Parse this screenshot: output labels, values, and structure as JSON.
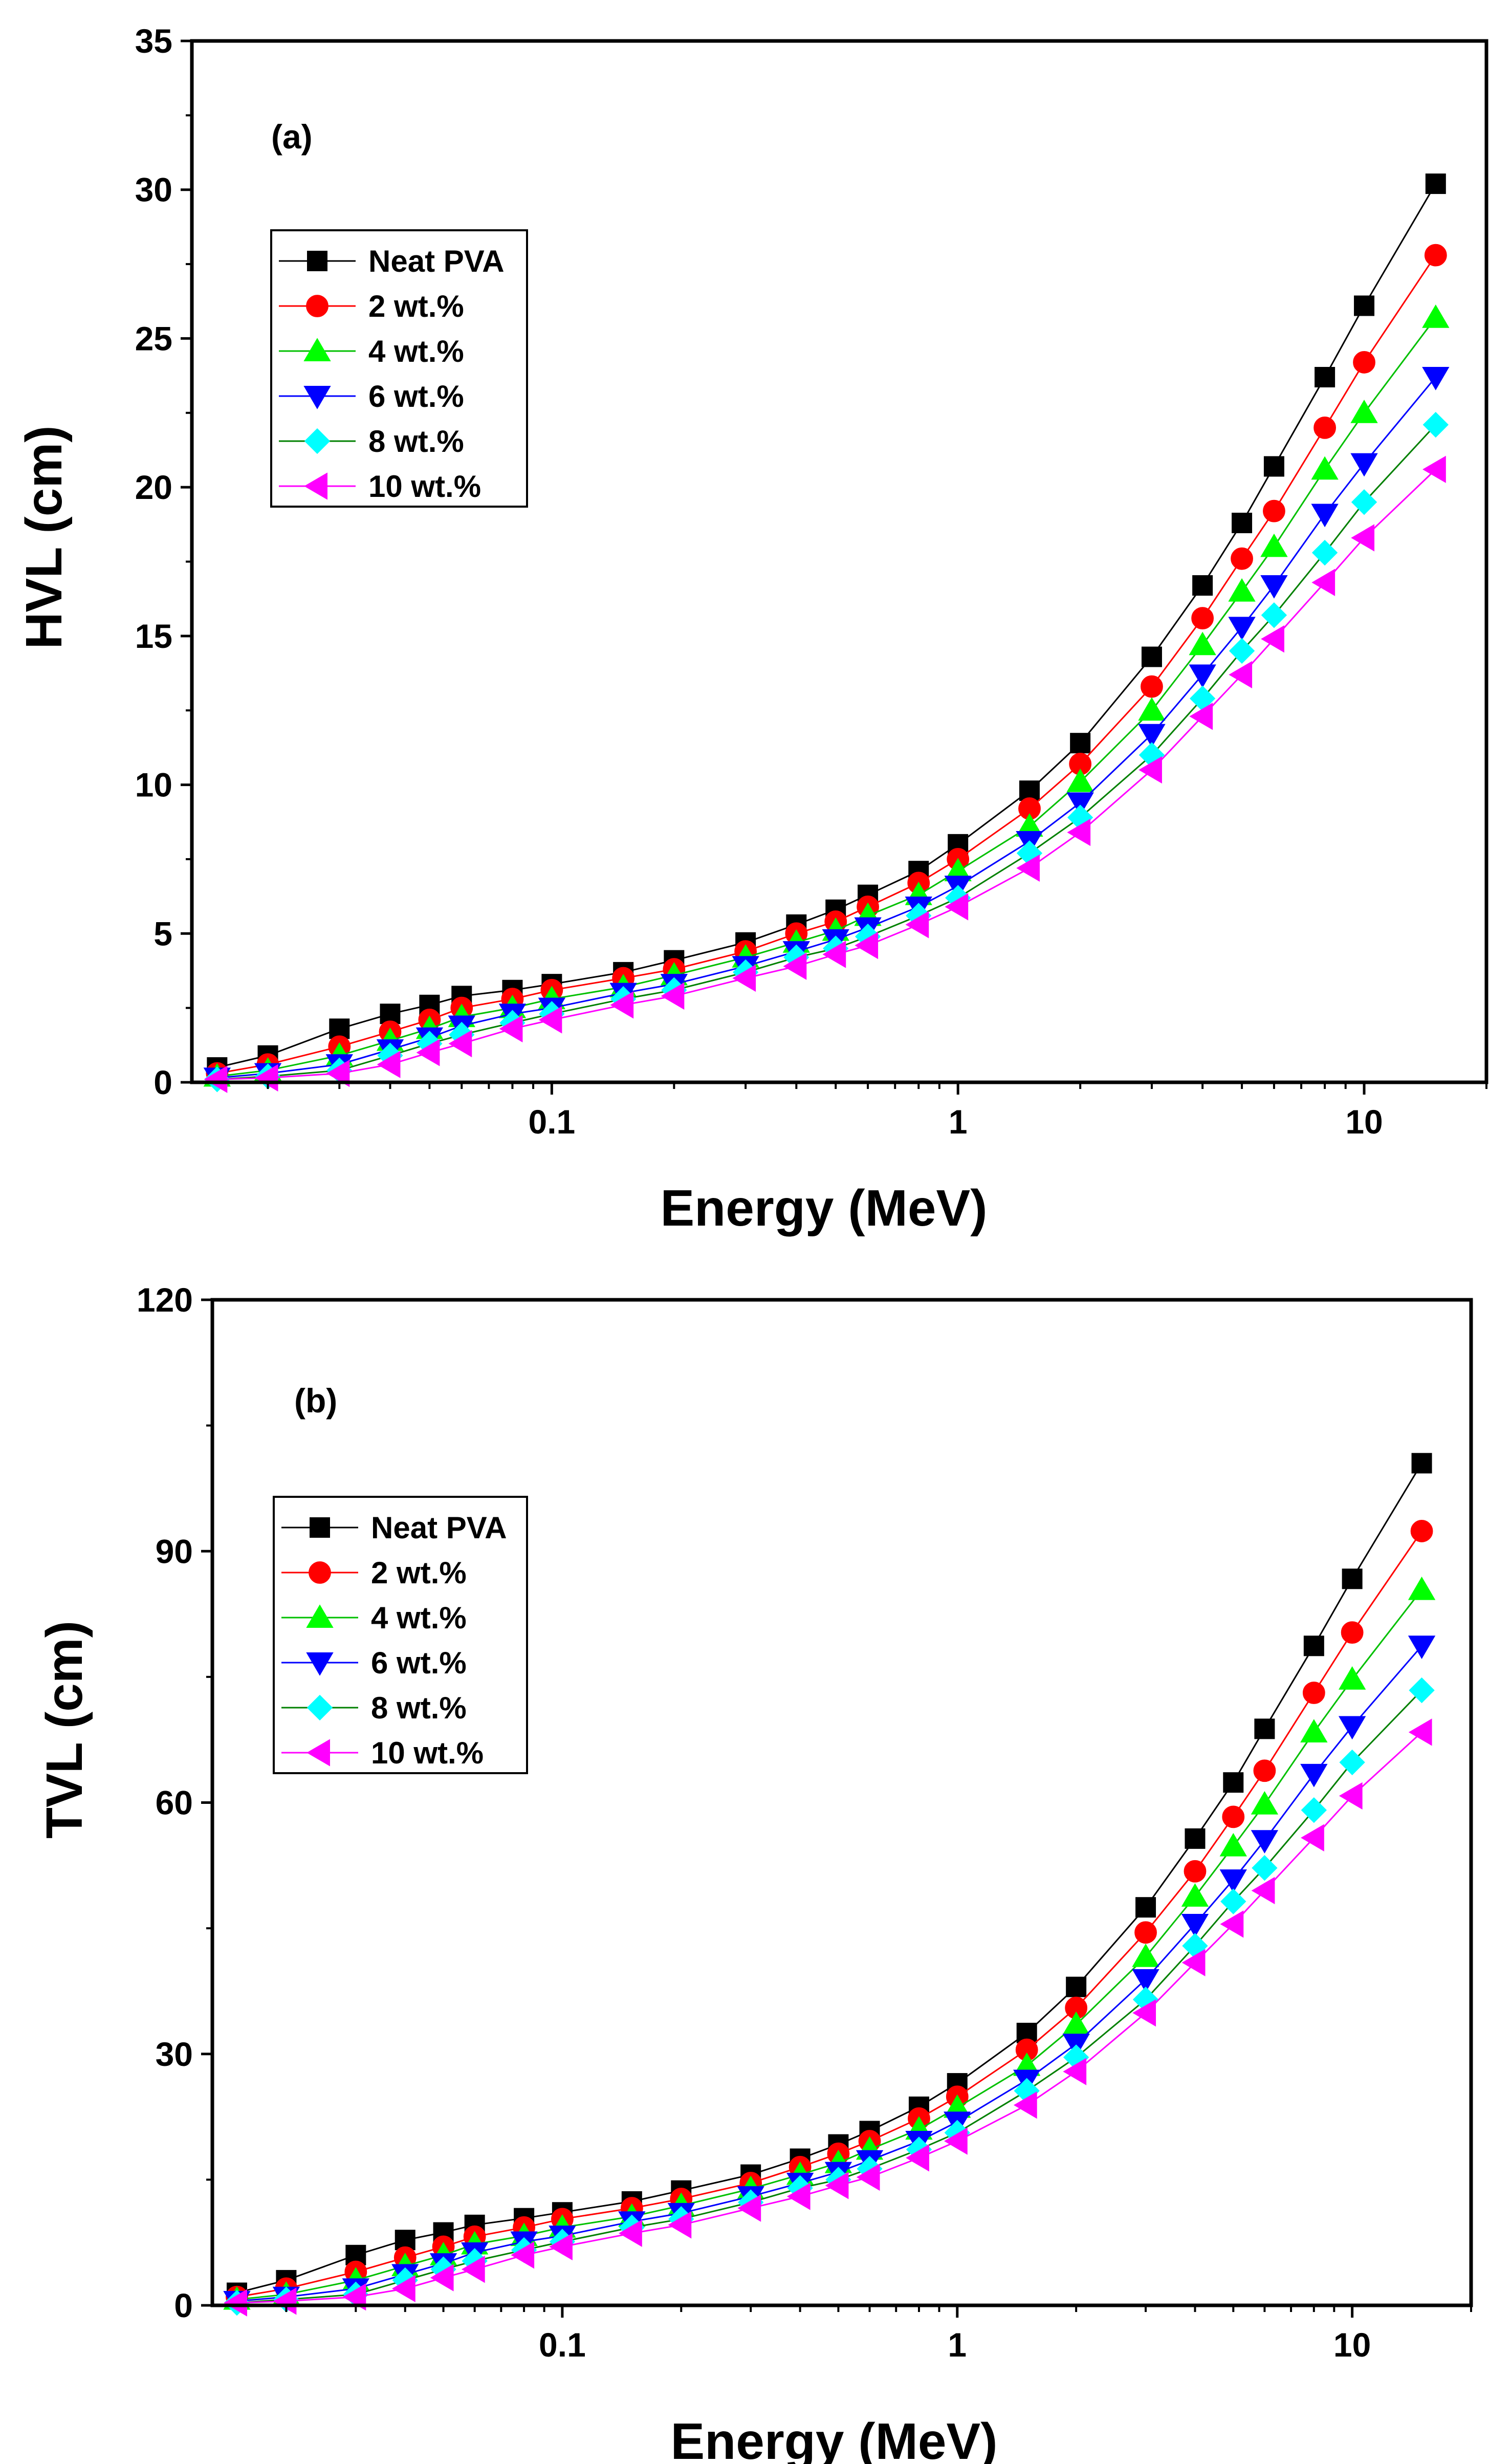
{
  "chart_data": [
    {
      "type": "line",
      "panel_label": "(a)",
      "xlabel": "Energy (MeV)",
      "ylabel": "HVL (cm)",
      "xscale": "log",
      "xlim": [
        0.013,
        20
      ],
      "ylim": [
        0,
        35
      ],
      "xticks": [
        {
          "value": 0.1,
          "label": "0.1"
        },
        {
          "value": 1,
          "label": "1"
        },
        {
          "value": 10,
          "label": "10"
        }
      ],
      "yticks": [
        0,
        5,
        10,
        15,
        20,
        25,
        30,
        35
      ],
      "legend_position": "top-left",
      "x": [
        0.015,
        0.02,
        0.03,
        0.04,
        0.05,
        0.06,
        0.08,
        0.1,
        0.15,
        0.2,
        0.3,
        0.4,
        0.5,
        0.6,
        0.8,
        1,
        1.5,
        2,
        3,
        4,
        5,
        6,
        8,
        10,
        15
      ],
      "series": [
        {
          "name": "Neat PVA",
          "color": "#000000",
          "marker": "square",
          "values": [
            0.5,
            0.9,
            1.8,
            2.3,
            2.6,
            2.9,
            3.1,
            3.3,
            3.7,
            4.1,
            4.7,
            5.3,
            5.8,
            6.3,
            7.1,
            8.0,
            9.8,
            11.4,
            14.3,
            16.7,
            18.8,
            20.7,
            23.7,
            26.1,
            30.2
          ]
        },
        {
          "name": "2 wt.%",
          "color": "#ff0000",
          "marker": "circle",
          "values": [
            0.3,
            0.6,
            1.2,
            1.7,
            2.1,
            2.5,
            2.8,
            3.1,
            3.5,
            3.8,
            4.4,
            5.0,
            5.4,
            5.9,
            6.7,
            7.5,
            9.2,
            10.7,
            13.3,
            15.6,
            17.6,
            19.2,
            22.0,
            24.2,
            27.8
          ]
        },
        {
          "name": "4 wt.%",
          "color": "#00ff00",
          "marker": "triangle-up",
          "values": [
            0.2,
            0.4,
            0.9,
            1.4,
            1.8,
            2.2,
            2.5,
            2.8,
            3.2,
            3.6,
            4.2,
            4.7,
            5.1,
            5.6,
            6.3,
            7.1,
            8.6,
            10.1,
            12.5,
            14.7,
            16.5,
            18.0,
            20.6,
            22.5,
            25.7
          ]
        },
        {
          "name": "6 wt.%",
          "color": "#0000ff",
          "marker": "triangle-down",
          "values": [
            0.15,
            0.3,
            0.6,
            1.1,
            1.5,
            1.9,
            2.3,
            2.5,
            3.0,
            3.3,
            3.9,
            4.4,
            4.8,
            5.2,
            5.9,
            6.6,
            8.1,
            9.4,
            11.7,
            13.7,
            15.3,
            16.7,
            19.1,
            20.8,
            23.7
          ]
        },
        {
          "name": "8 wt.%",
          "color": "#00ffff",
          "marker": "diamond",
          "values": [
            0.1,
            0.2,
            0.4,
            0.9,
            1.3,
            1.6,
            2.0,
            2.3,
            2.8,
            3.1,
            3.7,
            4.2,
            4.5,
            4.9,
            5.6,
            6.2,
            7.7,
            8.9,
            11.0,
            12.9,
            14.5,
            15.7,
            17.8,
            19.5,
            22.1
          ]
        },
        {
          "name": "10 wt.%",
          "color": "#ff00ff",
          "marker": "triangle-left",
          "values": [
            0.1,
            0.15,
            0.3,
            0.6,
            1.0,
            1.3,
            1.8,
            2.1,
            2.6,
            2.9,
            3.5,
            3.9,
            4.3,
            4.6,
            5.3,
            5.9,
            7.2,
            8.4,
            10.5,
            12.3,
            13.7,
            14.9,
            16.8,
            18.3,
            20.6
          ]
        }
      ]
    },
    {
      "type": "line",
      "panel_label": "(b)",
      "xlabel": "Energy (MeV)",
      "ylabel": "TVL (cm)",
      "xscale": "log",
      "xlim": [
        0.013,
        20
      ],
      "ylim": [
        0,
        120
      ],
      "xticks": [
        {
          "value": 0.1,
          "label": "0.1"
        },
        {
          "value": 1,
          "label": "1"
        },
        {
          "value": 10,
          "label": "10"
        }
      ],
      "yticks": [
        0,
        30,
        60,
        90,
        120
      ],
      "legend_position": "top-left",
      "x": [
        0.015,
        0.02,
        0.03,
        0.04,
        0.05,
        0.06,
        0.08,
        0.1,
        0.15,
        0.2,
        0.3,
        0.4,
        0.5,
        0.6,
        0.8,
        1,
        1.5,
        2,
        3,
        4,
        5,
        6,
        8,
        10,
        15
      ],
      "series": [
        {
          "name": "Neat PVA",
          "color": "#000000",
          "marker": "square",
          "values": [
            1.5,
            3.0,
            6.0,
            7.8,
            8.7,
            9.6,
            10.4,
            11.1,
            12.4,
            13.7,
            15.6,
            17.5,
            19.2,
            20.8,
            23.7,
            26.5,
            32.5,
            38.0,
            47.5,
            55.7,
            62.4,
            68.8,
            78.7,
            86.7,
            100.5
          ]
        },
        {
          "name": "2 wt.%",
          "color": "#ff0000",
          "marker": "circle",
          "values": [
            1.0,
            2.0,
            4.0,
            5.7,
            7.0,
            8.2,
            9.3,
            10.3,
            11.6,
            12.7,
            14.6,
            16.5,
            18.1,
            19.6,
            22.3,
            24.9,
            30.5,
            35.5,
            44.5,
            51.8,
            58.3,
            63.8,
            73.1,
            80.3,
            92.4
          ]
        },
        {
          "name": "4 wt.%",
          "color": "#00ff00",
          "marker": "triangle-up",
          "values": [
            0.7,
            1.3,
            3.0,
            4.7,
            6.0,
            7.3,
            8.3,
            9.3,
            10.6,
            11.9,
            13.9,
            15.6,
            17.0,
            18.6,
            21.0,
            23.6,
            28.6,
            33.5,
            41.6,
            48.8,
            54.8,
            59.8,
            68.4,
            74.7,
            85.4
          ]
        },
        {
          "name": "6 wt.%",
          "color": "#0000ff",
          "marker": "triangle-down",
          "values": [
            0.5,
            1.0,
            2.0,
            3.7,
            5.0,
            6.3,
            7.6,
            8.3,
            10.0,
            11.0,
            13.0,
            14.6,
            15.9,
            17.3,
            19.6,
            21.9,
            26.9,
            31.2,
            38.9,
            45.5,
            50.8,
            55.5,
            63.4,
            69.1,
            78.7
          ]
        },
        {
          "name": "8 wt.%",
          "color": "#00ffff",
          "marker": "diamond",
          "values": [
            0.3,
            0.7,
            1.3,
            3.0,
            4.3,
            5.3,
            6.6,
            7.6,
            9.3,
            10.3,
            12.3,
            14.0,
            15.0,
            16.3,
            18.6,
            20.6,
            25.6,
            29.6,
            36.5,
            42.9,
            48.2,
            52.2,
            59.1,
            64.8,
            73.4
          ]
        },
        {
          "name": "10 wt.%",
          "color": "#ff00ff",
          "marker": "triangle-left",
          "values": [
            0.3,
            0.5,
            1.0,
            2.0,
            3.3,
            4.3,
            6.0,
            7.0,
            8.6,
            9.6,
            11.6,
            13.0,
            14.3,
            15.3,
            17.6,
            19.6,
            23.9,
            27.9,
            34.9,
            40.9,
            45.5,
            49.5,
            55.8,
            60.8,
            68.4
          ]
        }
      ]
    }
  ]
}
